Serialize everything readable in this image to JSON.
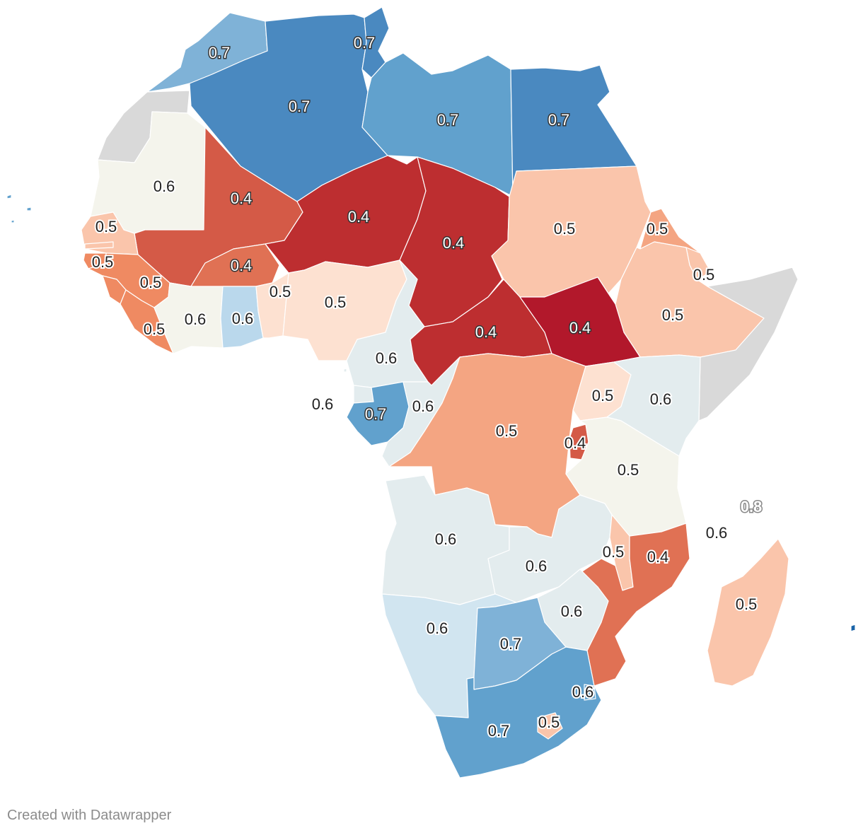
{
  "colors": {
    "v04_deep": "#b2182b",
    "v04": "#bd2e30",
    "v04_mid": "#d45a47",
    "v04_light": "#e07154",
    "v05_strong": "#ef8a62",
    "v05_mid": "#f4a582",
    "v05": "#fac5ab",
    "v05_light": "#fde1d1",
    "v06_neutral": "#f4f4ec",
    "v06_cool": "#e3ecee",
    "v06_blue": "#d1e5f0",
    "v06_sky": "#bad8ec",
    "v07_light": "#7fb2d7",
    "v07": "#61a1cd",
    "v07_deep": "#4a89c0",
    "v08": "#1a64a8",
    "no_data": "#d9d9d9"
  },
  "map_data": {
    "type": "choropleth",
    "region": "Africa",
    "values": [
      {
        "id": "morocco",
        "value": "0.7",
        "color": "v07_light"
      },
      {
        "id": "algeria",
        "value": "0.7",
        "color": "v07_deep"
      },
      {
        "id": "tunisia",
        "value": "0.7",
        "color": "v07_deep"
      },
      {
        "id": "libya",
        "value": "0.7",
        "color": "v07"
      },
      {
        "id": "egypt",
        "value": "0.7",
        "color": "v07_deep"
      },
      {
        "id": "western-sahara",
        "value": null,
        "color": "no_data"
      },
      {
        "id": "mauritania",
        "value": "0.6",
        "color": "v06_neutral"
      },
      {
        "id": "mali",
        "value": "0.4",
        "color": "v04_mid"
      },
      {
        "id": "niger",
        "value": "0.4",
        "color": "v04"
      },
      {
        "id": "chad",
        "value": "0.4",
        "color": "v04"
      },
      {
        "id": "sudan",
        "value": "0.5",
        "color": "v05"
      },
      {
        "id": "eritrea",
        "value": "0.5",
        "color": "v05_mid"
      },
      {
        "id": "djibouti",
        "value": "0.5",
        "color": "v05"
      },
      {
        "id": "ethiopia",
        "value": "0.5",
        "color": "v05"
      },
      {
        "id": "somalia",
        "value": null,
        "color": "no_data"
      },
      {
        "id": "senegal",
        "value": "0.5",
        "color": "v05"
      },
      {
        "id": "gambia",
        "value": "0.5",
        "color": "v05"
      },
      {
        "id": "guinea-bissau",
        "value": "0.5",
        "color": "v05_strong"
      },
      {
        "id": "guinea",
        "value": "0.5",
        "color": "v05_strong"
      },
      {
        "id": "sierra-leone",
        "value": "0.5",
        "color": "v05_strong"
      },
      {
        "id": "liberia",
        "value": "0.5",
        "color": "v05_strong"
      },
      {
        "id": "cote-divoire",
        "value": "0.6",
        "color": "v06_neutral"
      },
      {
        "id": "burkina-faso",
        "value": "0.4",
        "color": "v04_light"
      },
      {
        "id": "ghana",
        "value": "0.6",
        "color": "v06_sky"
      },
      {
        "id": "togo-benin",
        "value": "0.5",
        "color": "v05_light"
      },
      {
        "id": "nigeria",
        "value": "0.5",
        "color": "v05_light"
      },
      {
        "id": "cameroon",
        "value": "0.6",
        "color": "v06_cool"
      },
      {
        "id": "central-african-republic",
        "value": "0.4",
        "color": "v04"
      },
      {
        "id": "south-sudan",
        "value": "0.4",
        "color": "v04_deep"
      },
      {
        "id": "equatorial-guinea",
        "value": "0.6",
        "color": "v06_cool"
      },
      {
        "id": "gabon",
        "value": "0.7",
        "color": "v07"
      },
      {
        "id": "congo",
        "value": "0.6",
        "color": "v06_cool"
      },
      {
        "id": "dr-congo",
        "value": "0.5",
        "color": "v05_mid"
      },
      {
        "id": "uganda",
        "value": "0.5",
        "color": "v05_light"
      },
      {
        "id": "kenya",
        "value": "0.6",
        "color": "v06_cool"
      },
      {
        "id": "rwanda-burundi",
        "value": "0.4",
        "color": "v04_mid"
      },
      {
        "id": "tanzania",
        "value": "0.5",
        "color": "v06_neutral"
      },
      {
        "id": "angola",
        "value": "0.6",
        "color": "v06_cool"
      },
      {
        "id": "zambia",
        "value": "0.6",
        "color": "v06_cool"
      },
      {
        "id": "malawi",
        "value": "0.5",
        "color": "v05"
      },
      {
        "id": "mozambique",
        "value": "0.4",
        "color": "v04_light"
      },
      {
        "id": "zimbabwe",
        "value": "0.6",
        "color": "v06_cool"
      },
      {
        "id": "namibia",
        "value": "0.6",
        "color": "v06_blue"
      },
      {
        "id": "botswana",
        "value": "0.7",
        "color": "v07_light"
      },
      {
        "id": "south-africa",
        "value": "0.7",
        "color": "v07"
      },
      {
        "id": "eswatini",
        "value": "0.6",
        "color": "v07"
      },
      {
        "id": "lesotho",
        "value": "0.5",
        "color": "v05"
      },
      {
        "id": "madagascar",
        "value": "0.5",
        "color": "v05"
      },
      {
        "id": "comoros",
        "value": "0.6",
        "color": "v06_cool"
      },
      {
        "id": "seychelles",
        "value": "0.8",
        "color": "v08"
      },
      {
        "id": "mauritius",
        "value": "0.8",
        "color": "v08"
      },
      {
        "id": "cabo-verde",
        "value": null,
        "color": "v07"
      },
      {
        "id": "sao-tome",
        "value": "0.6",
        "color": "v06_cool"
      }
    ]
  },
  "footer": {
    "credit": "Created with Datawrapper"
  }
}
